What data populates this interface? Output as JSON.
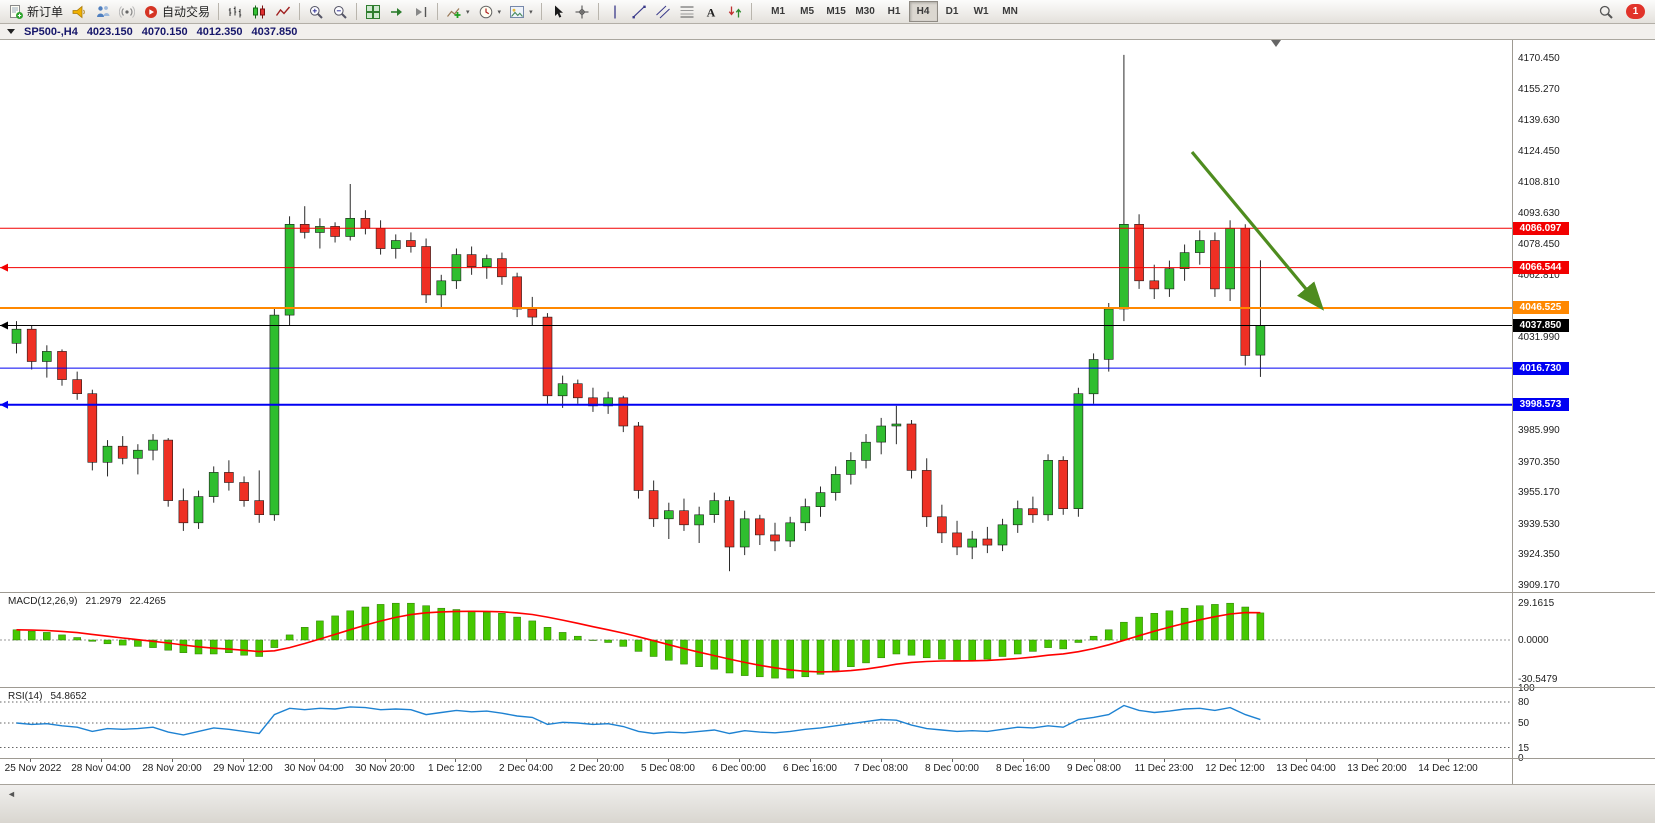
{
  "toolbar": {
    "buttons": [
      {
        "name": "new-order",
        "icon": "neworder",
        "label": "新订单"
      },
      {
        "name": "sound-alerts",
        "icon": "horn"
      },
      {
        "name": "market-depth",
        "icon": "depth"
      },
      {
        "name": "trade-signals",
        "icon": "signal"
      },
      {
        "name": "auto-trading",
        "icon": "autoplay",
        "label": "自动交易"
      },
      {
        "name": "sep"
      },
      {
        "name": "chart-bars",
        "icon": "bars"
      },
      {
        "name": "chart-candlesticks",
        "icon": "candles"
      },
      {
        "name": "chart-line",
        "icon": "linechart"
      },
      {
        "name": "sep"
      },
      {
        "name": "zoom-in",
        "icon": "zoomin"
      },
      {
        "name": "zoom-out",
        "icon": "zoomout"
      },
      {
        "name": "sep"
      },
      {
        "name": "tile-windows",
        "icon": "tile"
      },
      {
        "name": "auto-scroll",
        "icon": "autoscroll"
      },
      {
        "name": "chart-shift",
        "icon": "shift"
      },
      {
        "name": "sep"
      },
      {
        "name": "indicators",
        "icon": "indicators",
        "caret": true
      },
      {
        "name": "periods",
        "icon": "clock",
        "caret": true
      },
      {
        "name": "templates",
        "icon": "template",
        "caret": true
      },
      {
        "name": "sep"
      },
      {
        "name": "cursor",
        "icon": "cursor"
      },
      {
        "name": "crosshair",
        "icon": "crosshair"
      },
      {
        "name": "sep"
      },
      {
        "name": "vertical-line",
        "icon": "vline"
      },
      {
        "name": "trendline",
        "icon": "tline"
      },
      {
        "name": "equidistant-channel",
        "icon": "channel"
      },
      {
        "name": "fibonacci",
        "icon": "fibo"
      },
      {
        "name": "text-label",
        "icon": "textA"
      },
      {
        "name": "arrow-objects",
        "icon": "arrowsym"
      },
      {
        "name": "sep"
      }
    ],
    "timeframes": [
      "M1",
      "M5",
      "M15",
      "M30",
      "H1",
      "H4",
      "D1",
      "W1",
      "MN"
    ],
    "active_timeframe": "H4",
    "right_buttons": [
      {
        "name": "search",
        "icon": "magnifier"
      },
      {
        "name": "notifications",
        "badge": "1"
      }
    ]
  },
  "symbol_bar": {
    "collapse_icon": "down-triangle",
    "title": "SP500-,H4",
    "open": "4023.150",
    "high": "4070.150",
    "low": "4012.350",
    "close": "4037.850"
  },
  "chart_data": [
    {
      "type": "candlestick",
      "title": "SP500-,H4",
      "ylim": [
        3905.7,
        4179.4
      ],
      "up_color": "#2fbe2f",
      "down_color": "#ee3024",
      "wick_color": "#2a2a2a",
      "body_border": "#1c1c1c",
      "y_ticks": [
        "4170.450",
        "4155.270",
        "4139.630",
        "4124.450",
        "4108.810",
        "4093.630",
        "4078.450",
        "4062.810",
        "4031.990",
        "3985.990",
        "3970.350",
        "3955.170",
        "3939.530",
        "3924.350",
        "3909.170"
      ],
      "hlines": [
        {
          "price": 4086.097,
          "label": "4086.097",
          "color": "#f20000",
          "width": 1
        },
        {
          "price": 4066.544,
          "label": "4066.544",
          "color": "#f20000",
          "width": 1,
          "left_marker": true
        },
        {
          "price": 4046.525,
          "label": "4046.525",
          "color": "#ff8800",
          "width": 2
        },
        {
          "price": 4037.85,
          "label": "4037.850",
          "color": "#000000",
          "width": 1,
          "left_marker": true
        },
        {
          "price": 4016.73,
          "label": "4016.730",
          "color": "#0000f2",
          "width": 1
        },
        {
          "price": 3998.573,
          "label": "3998.573",
          "color": "#0000f2",
          "width": 2,
          "left_marker": true
        }
      ],
      "arrow": {
        "from_bar": 77.5,
        "from_price": 4124,
        "to_bar": 86,
        "to_price": 4047,
        "color": "#4e8c1f"
      },
      "shift_bar": 83.3,
      "candles": [
        [
          4029,
          4040,
          4024,
          4036
        ],
        [
          4036,
          4038,
          4016,
          4020
        ],
        [
          4020,
          4028,
          4012,
          4025
        ],
        [
          4025,
          4026,
          4008,
          4011
        ],
        [
          4011,
          4015,
          4001,
          4004
        ],
        [
          4004,
          4006,
          3966,
          3970
        ],
        [
          3970,
          3981,
          3963,
          3978
        ],
        [
          3978,
          3983,
          3969,
          3972
        ],
        [
          3972,
          3979,
          3964,
          3976
        ],
        [
          3976,
          3984,
          3971,
          3981
        ],
        [
          3981,
          3982,
          3948,
          3951
        ],
        [
          3951,
          3957,
          3936,
          3940
        ],
        [
          3940,
          3956,
          3937,
          3953
        ],
        [
          3953,
          3968,
          3950,
          3965
        ],
        [
          3965,
          3971,
          3956,
          3960
        ],
        [
          3960,
          3963,
          3948,
          3951
        ],
        [
          3951,
          3966,
          3940,
          3944
        ],
        [
          3944,
          4046,
          3941,
          4043
        ],
        [
          4043,
          4092,
          4038,
          4088
        ],
        [
          4088,
          4097,
          4081,
          4084
        ],
        [
          4084,
          4091,
          4076,
          4087
        ],
        [
          4087,
          4089,
          4079,
          4082
        ],
        [
          4082,
          4108,
          4080,
          4091
        ],
        [
          4091,
          4095,
          4083,
          4086
        ],
        [
          4086,
          4090,
          4073,
          4076
        ],
        [
          4076,
          4083,
          4071,
          4080
        ],
        [
          4080,
          4084,
          4074,
          4077
        ],
        [
          4077,
          4081,
          4049,
          4053
        ],
        [
          4053,
          4063,
          4046,
          4060
        ],
        [
          4060,
          4076,
          4056,
          4073
        ],
        [
          4073,
          4077,
          4063,
          4067
        ],
        [
          4067,
          4073,
          4061,
          4071
        ],
        [
          4071,
          4074,
          4058,
          4062
        ],
        [
          4062,
          4064,
          4042,
          4046
        ],
        [
          4046,
          4052,
          4038,
          4042
        ],
        [
          4042,
          4044,
          3999,
          4003
        ],
        [
          4003,
          4013,
          3997,
          4009
        ],
        [
          4009,
          4011,
          3999,
          4002
        ],
        [
          4002,
          4007,
          3995,
          3998
        ],
        [
          3998,
          4005,
          3994,
          4002
        ],
        [
          4002,
          4003,
          3985,
          3988
        ],
        [
          3988,
          3990,
          3952,
          3956
        ],
        [
          3956,
          3961,
          3938,
          3942
        ],
        [
          3942,
          3950,
          3932,
          3946
        ],
        [
          3946,
          3952,
          3936,
          3939
        ],
        [
          3939,
          3948,
          3930,
          3944
        ],
        [
          3944,
          3955,
          3940,
          3951
        ],
        [
          3951,
          3953,
          3916,
          3928
        ],
        [
          3928,
          3946,
          3924,
          3942
        ],
        [
          3942,
          3944,
          3929,
          3934
        ],
        [
          3934,
          3940,
          3926,
          3931
        ],
        [
          3931,
          3943,
          3928,
          3940
        ],
        [
          3940,
          3952,
          3936,
          3948
        ],
        [
          3948,
          3958,
          3943,
          3955
        ],
        [
          3955,
          3968,
          3951,
          3964
        ],
        [
          3964,
          3975,
          3959,
          3971
        ],
        [
          3971,
          3984,
          3967,
          3980
        ],
        [
          3980,
          3992,
          3974,
          3988
        ],
        [
          3988,
          3998,
          3979,
          3989
        ],
        [
          3989,
          3991,
          3962,
          3966
        ],
        [
          3966,
          3972,
          3938,
          3943
        ],
        [
          3943,
          3949,
          3930,
          3935
        ],
        [
          3935,
          3941,
          3924,
          3928
        ],
        [
          3928,
          3936,
          3922,
          3932
        ],
        [
          3932,
          3938,
          3925,
          3929
        ],
        [
          3929,
          3942,
          3926,
          3939
        ],
        [
          3939,
          3951,
          3935,
          3947
        ],
        [
          3947,
          3953,
          3940,
          3944
        ],
        [
          3944,
          3974,
          3941,
          3971
        ],
        [
          3971,
          3973,
          3944,
          3947
        ],
        [
          3947,
          4007,
          3943,
          4004
        ],
        [
          4004,
          4024,
          3999,
          4021
        ],
        [
          4021,
          4049,
          4015,
          4046
        ],
        [
          4046,
          4172,
          4040,
          4088
        ],
        [
          4088,
          4093,
          4056,
          4060
        ],
        [
          4060,
          4068,
          4051,
          4056
        ],
        [
          4056,
          4070,
          4052,
          4066
        ],
        [
          4066,
          4078,
          4060,
          4074
        ],
        [
          4074,
          4085,
          4068,
          4080
        ],
        [
          4080,
          4084,
          4052,
          4056
        ],
        [
          4056,
          4090,
          4050,
          4086
        ],
        [
          4086,
          4088,
          4018,
          4023
        ],
        [
          4023.15,
          4070.15,
          4012.35,
          4037.85
        ]
      ]
    },
    {
      "type": "bar",
      "name": "MACD(12,26,9)",
      "values_label": [
        "21.2979",
        "22.4265"
      ],
      "ylim": [
        -37,
        37
      ],
      "y_ticks": [
        "29.1615",
        "0.0000",
        "-30.5479"
      ],
      "histogram_color": "#46c800",
      "histogram_border": "#2a7a00",
      "signal_color": "#ff0000",
      "signal_period": 9,
      "histogram": [
        8,
        7,
        6,
        4,
        2,
        -1,
        -3,
        -4,
        -5,
        -6,
        -8,
        -10,
        -11,
        -11,
        -10,
        -12,
        -13,
        -6,
        4,
        10,
        15,
        19,
        23,
        26,
        28,
        29,
        29,
        27,
        25,
        24,
        23,
        22,
        21,
        18,
        15,
        10,
        6,
        3,
        0,
        -2,
        -5,
        -9,
        -13,
        -16,
        -19,
        -21,
        -23,
        -26,
        -28,
        -29,
        -30,
        -30,
        -29,
        -27,
        -24,
        -21,
        -18,
        -14,
        -11,
        -12,
        -14,
        -15,
        -16,
        -16,
        -15,
        -13,
        -11,
        -9,
        -6,
        -7,
        -2,
        3,
        8,
        14,
        18,
        21,
        23,
        25,
        27,
        28,
        29,
        26,
        21.3
      ]
    },
    {
      "type": "line",
      "name": "RSI(14)",
      "value": "54.8652",
      "ylim": [
        0,
        100
      ],
      "levels": [
        80,
        50,
        15
      ],
      "y_ticks": [
        "100",
        "80",
        "50",
        "15",
        "0"
      ],
      "color": "#1e82d2",
      "values": [
        50,
        48,
        49,
        46,
        44,
        38,
        42,
        41,
        42,
        44,
        37,
        33,
        38,
        43,
        41,
        38,
        35,
        62,
        71,
        69,
        71,
        70,
        73,
        72,
        69,
        70,
        69,
        62,
        65,
        68,
        66,
        67,
        64,
        60,
        58,
        48,
        51,
        50,
        48,
        49,
        45,
        38,
        35,
        37,
        36,
        38,
        40,
        35,
        39,
        37,
        36,
        38,
        41,
        43,
        46,
        49,
        52,
        55,
        54,
        47,
        42,
        40,
        38,
        39,
        38,
        41,
        44,
        43,
        46,
        44,
        55,
        58,
        62,
        75,
        68,
        65,
        67,
        70,
        71,
        68,
        72,
        62,
        54.8652
      ]
    }
  ],
  "time_axis": {
    "labels": [
      "25 Nov 2022",
      "28 Nov 04:00",
      "28 Nov 20:00",
      "29 Nov 12:00",
      "30 Nov 04:00",
      "30 Nov 20:00",
      "1 Dec 12:00",
      "2 Dec 04:00",
      "2 Dec 20:00",
      "5 Dec 08:00",
      "6 Dec 00:00",
      "6 Dec 16:00",
      "7 Dec 08:00",
      "8 Dec 00:00",
      "8 Dec 16:00",
      "9 Dec 08:00",
      "11 Dec 23:00",
      "12 Dec 12:00",
      "13 Dec 04:00",
      "13 Dec 20:00",
      "14 Dec 12:00"
    ]
  }
}
